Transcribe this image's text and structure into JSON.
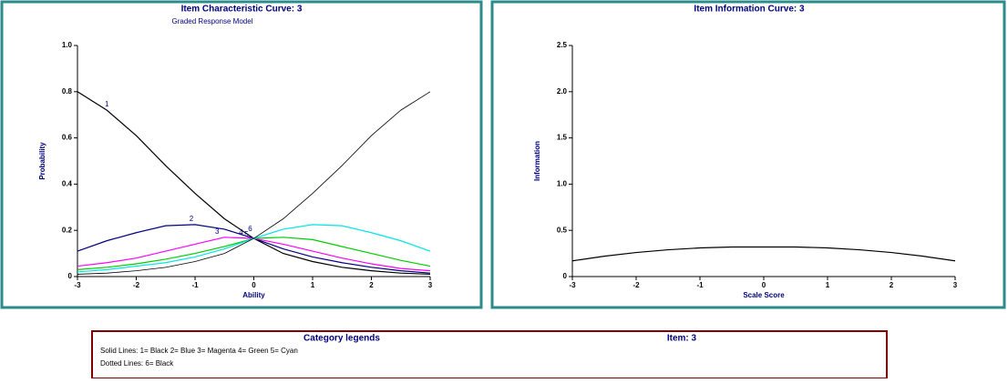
{
  "chart_data": [
    {
      "type": "line",
      "title": "Item Characteristic Curve: 3",
      "subtitle": "Graded Response Model",
      "x_label": "Ability",
      "y_label": "Probability",
      "x": [
        -3,
        -2.5,
        -2,
        -1.5,
        -1,
        -0.5,
        0,
        0.5,
        1,
        1.5,
        2,
        2.5,
        3
      ],
      "series": [
        {
          "name": "1",
          "color": "#000000",
          "values": [
            0.8,
            0.72,
            0.61,
            0.48,
            0.36,
            0.25,
            0.165,
            0.1,
            0.065,
            0.04,
            0.025,
            0.015,
            0.01
          ]
        },
        {
          "name": "2",
          "color": "#000080",
          "values": [
            0.11,
            0.155,
            0.19,
            0.22,
            0.225,
            0.205,
            0.165,
            0.12,
            0.085,
            0.06,
            0.04,
            0.025,
            0.015
          ]
        },
        {
          "name": "3",
          "color": "#ff00ff",
          "values": [
            0.045,
            0.06,
            0.08,
            0.11,
            0.14,
            0.17,
            0.165,
            0.14,
            0.11,
            0.08,
            0.055,
            0.035,
            0.025
          ]
        },
        {
          "name": "4",
          "color": "#00cc00",
          "values": [
            0.03,
            0.04,
            0.055,
            0.075,
            0.1,
            0.13,
            0.165,
            0.17,
            0.16,
            0.13,
            0.1,
            0.07,
            0.045
          ]
        },
        {
          "name": "5",
          "color": "#00e5e5",
          "values": [
            0.02,
            0.03,
            0.045,
            0.06,
            0.085,
            0.12,
            0.165,
            0.205,
            0.225,
            0.22,
            0.19,
            0.155,
            0.11
          ]
        },
        {
          "name": "6",
          "color": "#000000",
          "values": [
            0.01,
            0.015,
            0.025,
            0.04,
            0.065,
            0.1,
            0.165,
            0.25,
            0.36,
            0.48,
            0.61,
            0.72,
            0.8
          ]
        }
      ],
      "xlim": [
        -3,
        3
      ],
      "xticks": [
        -3,
        -2,
        -1,
        0,
        1,
        2,
        3
      ],
      "ylim": [
        0,
        1
      ],
      "yticks": [
        0,
        0.2,
        0.4,
        0.6,
        0.8,
        {
          "value": 1,
          "label": "1.0"
        }
      ]
    },
    {
      "type": "line",
      "title": "Item Information Curve: 3",
      "x_label": "Scale Score",
      "y_label": "Information",
      "x": [
        -3,
        -2.5,
        -2,
        -1.5,
        -1,
        -0.5,
        0,
        0.5,
        1,
        1.5,
        2,
        2.5,
        3
      ],
      "series": [
        {
          "color": "#000000",
          "values": [
            0.17,
            0.22,
            0.26,
            0.29,
            0.31,
            0.32,
            0.32,
            0.32,
            0.31,
            0.29,
            0.26,
            0.22,
            0.17
          ]
        }
      ],
      "xlim": [
        -3,
        3
      ],
      "xticks": [
        -3,
        -2,
        -1,
        0,
        1,
        2,
        3
      ],
      "ylim": [
        0,
        2.5
      ],
      "yticks": [
        0,
        0.5,
        {
          "value": 1,
          "label": "1.0"
        },
        1.5,
        {
          "value": 2,
          "label": "2.0"
        },
        2.5
      ]
    }
  ],
  "legend_box": {
    "title": "Category legends",
    "item": "Item: 3",
    "lines": [
      "Solid Lines: 1= Black 2= Blue 3= Magenta 4= Green 5= Cyan",
      "Dotted Lines: 6= Black"
    ]
  }
}
